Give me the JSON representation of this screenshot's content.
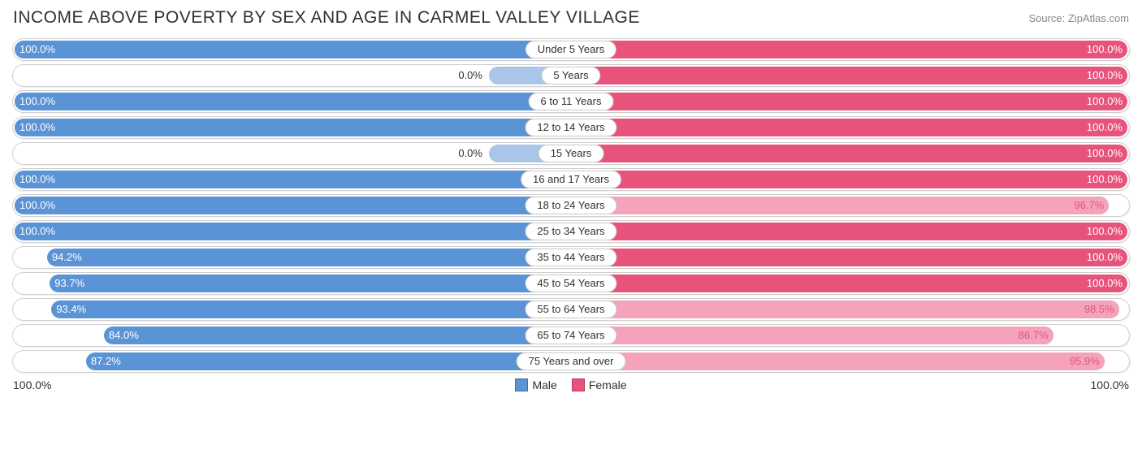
{
  "header": {
    "title": "INCOME ABOVE POVERTY BY SEX AND AGE IN CARMEL VALLEY VILLAGE",
    "source": "Source: ZipAtlas.com"
  },
  "chart": {
    "type": "diverging-bar",
    "male_color": "#5a94d6",
    "male_color_light": "#a9c6e8",
    "female_color": "#e8537c",
    "female_color_light": "#f4a3bb",
    "track_border": "#cfcfcf",
    "background": "#ffffff",
    "label_fontsize": 13,
    "title_fontsize": 21,
    "rows": [
      {
        "label": "Under 5 Years",
        "male": 100.0,
        "female": 100.0
      },
      {
        "label": "5 Years",
        "male": 0.0,
        "female": 100.0
      },
      {
        "label": "6 to 11 Years",
        "male": 100.0,
        "female": 100.0
      },
      {
        "label": "12 to 14 Years",
        "male": 100.0,
        "female": 100.0
      },
      {
        "label": "15 Years",
        "male": 0.0,
        "female": 100.0
      },
      {
        "label": "16 and 17 Years",
        "male": 100.0,
        "female": 100.0
      },
      {
        "label": "18 to 24 Years",
        "male": 100.0,
        "female": 96.7
      },
      {
        "label": "25 to 34 Years",
        "male": 100.0,
        "female": 100.0
      },
      {
        "label": "35 to 44 Years",
        "male": 94.2,
        "female": 100.0
      },
      {
        "label": "45 to 54 Years",
        "male": 93.7,
        "female": 100.0
      },
      {
        "label": "55 to 64 Years",
        "male": 93.4,
        "female": 98.5
      },
      {
        "label": "65 to 74 Years",
        "male": 84.0,
        "female": 86.7
      },
      {
        "label": "75 Years and over",
        "male": 87.2,
        "female": 95.9
      }
    ],
    "male_zero_stub_pct": 15,
    "axis_left": "100.0%",
    "axis_right": "100.0%",
    "legend": {
      "male": "Male",
      "female": "Female"
    }
  }
}
